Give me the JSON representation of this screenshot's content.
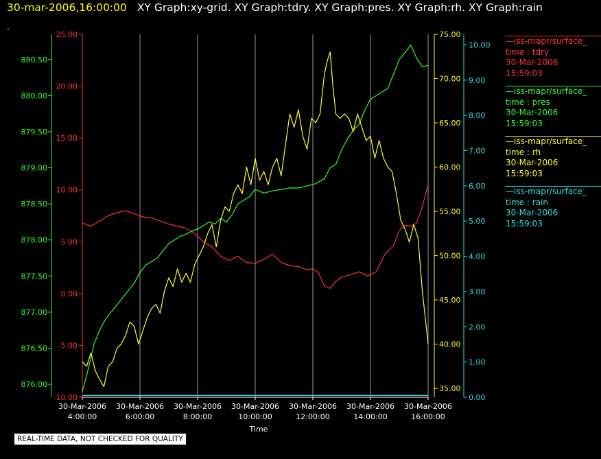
{
  "header": {
    "timestamp": "30-mar-2006,16:00:00",
    "graphs": "XY Graph:xy-grid.  XY Graph:tdry.  XY Graph:pres.  XY Graph:rh.  XY Graph:rain",
    "marker": "."
  },
  "footer": {
    "note": "REAL-TIME DATA, NOT CHECKED FOR QUALITY"
  },
  "legend": [
    {
      "name": "—iss-mapr/surface_",
      "var": "time : tdry",
      "date": "30-Mar-2006",
      "time": "15:59:03",
      "color": "#ff3030"
    },
    {
      "name": "—iss-mapr/surface_",
      "var": "time : pres",
      "date": "30-Mar-2006",
      "time": "15:59:03",
      "color": "#30ff30"
    },
    {
      "name": "—iss-mapr/surface_",
      "var": "time : rh",
      "date": "30-Mar-2006",
      "time": "15:59:03",
      "color": "#ffff30"
    },
    {
      "name": "—iss-mapr/surface_",
      "var": "time : rain",
      "date": "30-Mar-2006",
      "time": "15:59:03",
      "color": "#30e0e0"
    }
  ],
  "chart_data": {
    "type": "line",
    "xlabel": "Time",
    "xlim": [
      4,
      16
    ],
    "x_ticks": [
      {
        "x": 4,
        "date": "30-Mar-2006",
        "time": "4:00:00"
      },
      {
        "x": 6,
        "date": "30-Mar-2006",
        "time": "6:00:00"
      },
      {
        "x": 8,
        "date": "30-Mar-2006",
        "time": "8:00:00"
      },
      {
        "x": 10,
        "date": "30-Mar-2006",
        "time": "10:00:00"
      },
      {
        "x": 12,
        "date": "30-Mar-2006",
        "time": "12:00:00"
      },
      {
        "x": 14,
        "date": "30-Mar-2006",
        "time": "14:00:00"
      },
      {
        "x": 16,
        "date": "30-Mar-2006",
        "time": "16:00:00"
      }
    ],
    "grid": "vertical",
    "axes": [
      {
        "id": "pres",
        "color": "#30ff30",
        "ylim": [
          875.82,
          880.85
        ],
        "ticks": [
          "876.00",
          "876.50",
          "877.00",
          "877.50",
          "878.00",
          "878.50",
          "879.00",
          "879.50",
          "880.00",
          "880.50"
        ]
      },
      {
        "id": "tdry",
        "color": "#ff3030",
        "ylim": [
          -10,
          25
        ],
        "ticks": [
          "-10.00",
          "-5.00",
          "0.00",
          "5.00",
          "10.00",
          "15.00",
          "20.00",
          "25.00"
        ]
      },
      {
        "id": "rh",
        "color": "#ffff30",
        "ylim": [
          34,
          75
        ],
        "ticks": [
          "35.00",
          "40.00",
          "45.00",
          "50.00",
          "55.00",
          "60.00",
          "65.00",
          "70.00",
          "75.00"
        ]
      },
      {
        "id": "rain",
        "color": "#30e0e0",
        "ylim": [
          0,
          10.3
        ],
        "ticks": [
          "0.00",
          "1.00",
          "2.00",
          "3.00",
          "4.00",
          "5.00",
          "6.00",
          "7.00",
          "8.00",
          "9.00",
          "10.00"
        ]
      }
    ],
    "series": [
      {
        "axis": "tdry",
        "color": "#ff3030",
        "x": [
          4,
          4.3,
          4.6,
          4.9,
          5.2,
          5.5,
          5.8,
          6.1,
          6.4,
          6.7,
          7.0,
          7.3,
          7.6,
          7.9,
          8.2,
          8.5,
          8.8,
          9.1,
          9.4,
          9.7,
          10.0,
          10.3,
          10.6,
          10.9,
          11.2,
          11.5,
          11.8,
          12.0,
          12.2,
          12.4,
          12.6,
          12.8,
          13.0,
          13.3,
          13.6,
          13.9,
          14.2,
          14.5,
          14.8,
          15.0,
          15.2,
          15.4,
          15.6,
          15.8,
          16.0
        ],
        "y": [
          6.8,
          6.5,
          7.0,
          7.5,
          7.8,
          8.0,
          7.7,
          7.4,
          7.3,
          7.0,
          6.7,
          6.5,
          6.3,
          5.8,
          5.0,
          4.5,
          3.6,
          3.2,
          3.6,
          3.0,
          2.9,
          3.3,
          3.8,
          3.0,
          2.7,
          2.6,
          2.3,
          2.4,
          2.0,
          0.7,
          0.5,
          1.2,
          1.6,
          1.8,
          2.1,
          1.7,
          2.1,
          3.8,
          4.6,
          6.1,
          6.6,
          6.5,
          6.8,
          8.4,
          10.5
        ]
      },
      {
        "axis": "pres",
        "color": "#30ff30",
        "x": [
          4,
          4.2,
          4.4,
          4.6,
          4.8,
          5.0,
          5.2,
          5.4,
          5.6,
          5.8,
          6.0,
          6.2,
          6.4,
          6.6,
          6.8,
          7.0,
          7.2,
          7.4,
          7.6,
          7.8,
          8.0,
          8.2,
          8.4,
          8.6,
          8.8,
          9.0,
          9.2,
          9.4,
          9.6,
          9.8,
          10.0,
          10.3,
          10.6,
          10.9,
          11.2,
          11.5,
          11.8,
          12.1,
          12.4,
          12.6,
          12.8,
          13.0,
          13.2,
          13.4,
          13.6,
          13.8,
          14.0,
          14.2,
          14.4,
          14.6,
          14.8,
          15.0,
          15.2,
          15.4,
          15.6,
          15.8,
          16.0
        ],
        "y": [
          875.9,
          876.2,
          876.55,
          876.75,
          876.9,
          877.0,
          877.1,
          877.2,
          877.3,
          877.4,
          877.55,
          877.65,
          877.7,
          877.75,
          877.85,
          877.95,
          878.0,
          878.05,
          878.08,
          878.12,
          878.15,
          878.2,
          878.25,
          878.22,
          878.3,
          878.25,
          878.35,
          878.5,
          878.55,
          878.6,
          878.7,
          878.65,
          878.68,
          878.7,
          878.72,
          878.72,
          878.75,
          878.78,
          878.85,
          879.0,
          879.05,
          879.25,
          879.4,
          879.52,
          879.6,
          879.8,
          879.95,
          880.0,
          880.05,
          880.1,
          880.3,
          880.5,
          880.6,
          880.7,
          880.52,
          880.4,
          880.42
        ]
      },
      {
        "axis": "rh",
        "color": "#ffff30",
        "x": [
          4,
          4.15,
          4.3,
          4.45,
          4.6,
          4.75,
          4.9,
          5.05,
          5.2,
          5.35,
          5.5,
          5.65,
          5.8,
          5.95,
          6.1,
          6.25,
          6.4,
          6.55,
          6.7,
          6.85,
          7.0,
          7.15,
          7.3,
          7.45,
          7.6,
          7.75,
          7.9,
          8.05,
          8.2,
          8.35,
          8.5,
          8.65,
          8.8,
          8.95,
          9.1,
          9.25,
          9.4,
          9.55,
          9.7,
          9.85,
          10.0,
          10.15,
          10.3,
          10.45,
          10.6,
          10.75,
          10.9,
          11.05,
          11.2,
          11.35,
          11.5,
          11.65,
          11.8,
          11.95,
          12.1,
          12.25,
          12.4,
          12.5,
          12.6,
          12.7,
          12.8,
          12.95,
          13.1,
          13.25,
          13.4,
          13.55,
          13.7,
          13.85,
          14.0,
          14.15,
          14.3,
          14.45,
          14.6,
          14.75,
          14.9,
          15.05,
          15.2,
          15.35,
          15.5,
          15.65,
          15.8,
          15.9,
          16.0
        ],
        "y": [
          38.0,
          37.5,
          39.0,
          37.0,
          36.0,
          35.2,
          37.5,
          38.0,
          39.5,
          40.0,
          41.0,
          42.5,
          42.0,
          40.0,
          41.5,
          43.0,
          44.0,
          44.5,
          43.5,
          46.0,
          47.5,
          46.5,
          48.5,
          47.0,
          48.0,
          47.0,
          49.0,
          50.0,
          51.0,
          52.5,
          53.5,
          51.0,
          54.0,
          55.5,
          55.0,
          57.0,
          58.0,
          57.0,
          60.0,
          58.0,
          61.0,
          58.5,
          59.5,
          58.0,
          60.0,
          61.0,
          59.0,
          62.5,
          66.0,
          64.5,
          66.5,
          63.5,
          62.0,
          65.5,
          65.0,
          66.0,
          70.5,
          72.0,
          73.0,
          69.0,
          66.0,
          65.5,
          66.0,
          65.5,
          64.0,
          66.0,
          64.5,
          63.0,
          63.5,
          61.0,
          63.0,
          61.0,
          60.0,
          59.5,
          57.0,
          54.0,
          53.0,
          51.5,
          53.5,
          52.0,
          46.0,
          43.0,
          40.0
        ]
      },
      {
        "axis": "rain",
        "color": "#30e0e0",
        "x": [
          4,
          16
        ],
        "y": [
          0.05,
          0.05
        ]
      }
    ]
  }
}
